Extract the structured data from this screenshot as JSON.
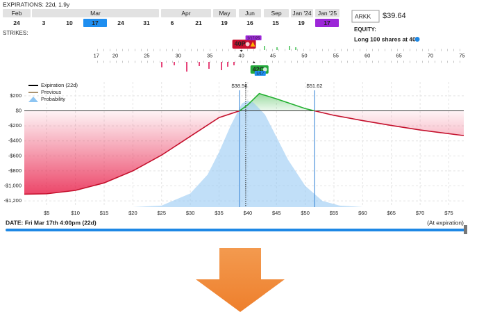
{
  "header": {
    "expirations": "EXPIRATIONS: 22d, 1.9y",
    "months": [
      "Feb",
      "Mar",
      "Apr",
      "May",
      "Jun",
      "Sep",
      "Jan '24",
      "Jan '25"
    ],
    "days": [
      {
        "label": 24
      },
      {
        "label": 3
      },
      {
        "label": 10
      },
      {
        "label": 17,
        "color": "#1e8ef0"
      },
      {
        "label": 24
      },
      {
        "label": 31
      },
      {
        "label": 6
      },
      {
        "label": 21
      },
      {
        "label": 19
      },
      {
        "label": 16
      },
      {
        "label": 15
      },
      {
        "label": 19
      },
      {
        "label": 17,
        "color": "#9c27d8"
      }
    ],
    "symbol": "ARKK",
    "price": "$39.64",
    "equity_label": "EQUITY:",
    "equity": "Long 100 shares at 40"
  },
  "strikes": {
    "label": "STRIKES:",
    "ticks": [
      17,
      20,
      25,
      30,
      35,
      40,
      45,
      50,
      55,
      60,
      65,
      70,
      75
    ],
    "positions": [
      {
        "label": "40P",
        "strike": 40,
        "color": "#c8102e",
        "date": "1/17/25",
        "date_color": "#9c27d8"
      },
      {
        "label": "42C",
        "strike": 42,
        "color": "#22a83a",
        "date": "3/17",
        "date_color": "#1e8ef0"
      }
    ]
  },
  "chart_data": {
    "type": "line",
    "xlim": [
      1.1,
      77.6
    ],
    "ylim": [
      -1282,
      384
    ],
    "xticks": [
      {
        "value": 5,
        "label": "$5"
      },
      {
        "value": 10,
        "label": "$10"
      },
      {
        "value": 15,
        "label": "$15"
      },
      {
        "value": 20,
        "label": "$20"
      },
      {
        "value": 25,
        "label": "$25"
      },
      {
        "value": 30,
        "label": "$30"
      },
      {
        "value": 35,
        "label": "$35"
      },
      {
        "value": 40,
        "label": "$40"
      },
      {
        "value": 45,
        "label": "$45"
      },
      {
        "value": 50,
        "label": "$50"
      },
      {
        "value": 55,
        "label": "$55"
      },
      {
        "value": 60,
        "label": "$60"
      },
      {
        "value": 65,
        "label": "$65"
      },
      {
        "value": 70,
        "label": "$70"
      },
      {
        "value": 75,
        "label": "$75"
      }
    ],
    "yticks": [
      {
        "value": 200,
        "label": "$200"
      },
      {
        "value": 0,
        "label": "$0"
      },
      {
        "value": -200,
        "label": "-$200"
      },
      {
        "value": -400,
        "label": "-$400"
      },
      {
        "value": -600,
        "label": "-$600"
      },
      {
        "value": -800,
        "label": "-$800"
      },
      {
        "value": -1000,
        "label": "-$1,000"
      },
      {
        "value": -1200,
        "label": "-$1,200"
      }
    ],
    "grid": true,
    "series": [
      {
        "name": "Expiration (22d)",
        "color": "#000000",
        "positive_color": "#22b030",
        "negative_color": "#c4102c",
        "x": [
          1.1,
          5,
          10,
          15,
          20,
          25,
          30,
          35,
          38.56,
          40,
          42,
          45,
          50,
          51.62,
          55,
          60,
          65,
          70,
          77.6
        ],
        "values": [
          -1110,
          -1105,
          -1060,
          -960,
          -800,
          -590,
          -340,
          -90,
          0,
          80,
          230,
          160,
          30,
          0,
          -60,
          -130,
          -195,
          -255,
          -330
        ]
      },
      {
        "name": "Probability",
        "color": "#8ec5f2",
        "x": [
          20,
          25,
          30,
          33,
          35,
          37,
          39,
          40,
          41,
          43,
          45,
          47,
          50,
          53,
          56,
          60
        ],
        "values": [
          -1282,
          -1262,
          -1100,
          -850,
          -550,
          -200,
          100,
          134,
          110,
          -50,
          -350,
          -650,
          -1000,
          -1200,
          -1262,
          -1282
        ]
      }
    ],
    "legend_only": [
      {
        "name": "Previous",
        "color": "#8d6e3f"
      }
    ],
    "vlines": [
      {
        "x": 38.56,
        "label": "$38.56",
        "color": "#4a90d9"
      },
      {
        "x": 51.62,
        "label": "$51.62",
        "color": "#4a90d9"
      }
    ],
    "price_line": 39.64
  },
  "footer": {
    "date": "DATE: Fri Mar 17th 4:00pm (22d)",
    "right": "(At expiration)"
  }
}
